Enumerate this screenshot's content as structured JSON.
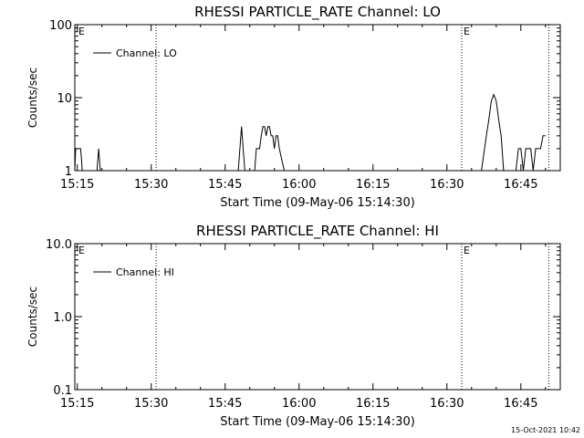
{
  "chart_data": [
    {
      "type": "line",
      "title": "RHESSI PARTICLE_RATE Channel: LO",
      "xlabel": "Start Time (09-May-06 15:14:30)",
      "ylabel": "Counts/sec",
      "yscale": "log",
      "xlim": [
        "15:14:30",
        "16:53:00"
      ],
      "ylim": [
        1,
        100
      ],
      "xticks": [
        "15:15",
        "15:30",
        "15:45",
        "16:00",
        "16:15",
        "16:30",
        "16:45"
      ],
      "yticks": [
        "1",
        "10",
        "100"
      ],
      "legend": "Channel: LO",
      "legend_position": "top-left",
      "grid": false,
      "flags": [
        "E",
        "E"
      ],
      "vlines": [
        "15:31:00",
        "16:33:00",
        "16:50:40"
      ],
      "series": [
        {
          "name": "Channel: LO",
          "x": [
            "15:14:30",
            "15:14:40",
            "15:15:00",
            "15:15:20",
            "15:15:40",
            "15:15:50",
            "15:16:00",
            "15:16:20",
            "15:16:40",
            "15:17:00",
            "15:17:20",
            "15:17:40",
            "15:18:00",
            "15:18:40",
            "15:19:00",
            "15:19:20",
            "15:19:40",
            "15:20:00",
            "15:20:20",
            "15:21:00",
            "15:25:00",
            "15:30:00",
            "15:35:00",
            "15:40:00",
            "15:45:00",
            "15:47:20",
            "15:47:40",
            "15:48:00",
            "15:48:20",
            "15:48:40",
            "15:49:00",
            "15:49:20",
            "15:50:00",
            "15:50:20",
            "15:50:40",
            "15:51:00",
            "15:51:20",
            "15:51:40",
            "15:52:00",
            "15:52:20",
            "15:52:40",
            "15:53:00",
            "15:53:20",
            "15:53:40",
            "15:54:00",
            "15:54:20",
            "15:54:40",
            "15:55:00",
            "15:55:20",
            "15:55:40",
            "15:56:00",
            "15:57:00",
            "16:00:00",
            "16:10:00",
            "16:20:00",
            "16:30:00",
            "16:37:00",
            "16:38:00",
            "16:38:30",
            "16:39:00",
            "16:39:30",
            "16:40:00",
            "16:40:30",
            "16:41:00",
            "16:41:30",
            "16:42:00",
            "16:42:30",
            "16:43:00",
            "16:43:30",
            "16:44:00",
            "16:44:30",
            "16:45:00",
            "16:45:30",
            "16:46:00",
            "16:46:30",
            "16:47:00",
            "16:47:30",
            "16:48:00",
            "16:48:30",
            "16:49:00",
            "16:49:30",
            "16:50:00"
          ],
          "y": [
            1,
            2,
            2,
            2,
            2,
            1.5,
            1,
            1,
            1,
            1,
            1,
            1,
            1,
            1,
            1,
            2,
            1,
            1,
            1,
            1,
            1,
            1,
            1,
            1,
            1,
            1,
            1,
            2,
            4,
            2,
            1,
            1,
            1,
            1,
            1,
            1,
            2,
            2,
            2,
            3,
            4,
            4,
            3,
            4,
            4,
            3,
            3,
            2,
            3,
            3,
            2,
            1,
            1,
            1,
            1,
            1,
            1,
            3,
            5,
            9,
            11,
            9,
            5,
            3,
            1,
            1,
            1,
            1,
            1,
            1,
            2,
            2,
            1,
            2,
            2,
            2,
            1,
            2,
            2,
            2,
            3,
            3
          ]
        }
      ]
    },
    {
      "type": "line",
      "title": "RHESSI PARTICLE_RATE Channel: HI",
      "xlabel": "Start Time (09-May-06 15:14:30)",
      "ylabel": "Counts/sec",
      "yscale": "log",
      "xlim": [
        "15:14:30",
        "16:53:00"
      ],
      "ylim": [
        0.1,
        10
      ],
      "xticks": [
        "15:15",
        "15:30",
        "15:45",
        "16:00",
        "16:15",
        "16:30",
        "16:45"
      ],
      "yticks": [
        "0.1",
        "1.0",
        "10.0"
      ],
      "legend": "Channel: HI",
      "legend_position": "top-left",
      "grid": false,
      "flags": [
        "E",
        "E"
      ],
      "vlines": [
        "15:31:00",
        "16:33:00",
        "16:50:40"
      ],
      "series": [
        {
          "name": "Channel: HI",
          "x": [],
          "y": []
        }
      ]
    }
  ],
  "timestamp": "15-Oct-2021 10:42"
}
